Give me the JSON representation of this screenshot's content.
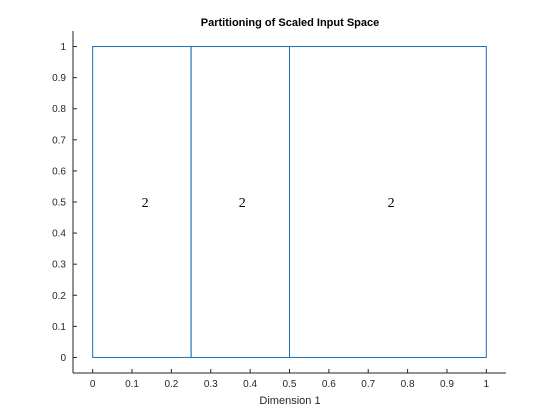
{
  "chart_data": {
    "type": "partition",
    "title": "Partitioning of Scaled Input Space",
    "xlabel": "Dimension 1",
    "ylabel": "",
    "xlim": [
      -0.05,
      1.05
    ],
    "ylim": [
      -0.05,
      1.05
    ],
    "xticks": [
      0,
      0.1,
      0.2,
      0.3,
      0.4,
      0.5,
      0.6,
      0.7,
      0.8,
      0.9,
      1
    ],
    "xtick_labels": [
      "0",
      "0.1",
      "0.2",
      "0.3",
      "0.4",
      "0.5",
      "0.6",
      "0.7",
      "0.8",
      "0.9",
      "1"
    ],
    "yticks": [
      0,
      0.1,
      0.2,
      0.3,
      0.4,
      0.5,
      0.6,
      0.7,
      0.8,
      0.9,
      1
    ],
    "ytick_labels": [
      "0",
      "0.1",
      "0.2",
      "0.3",
      "0.4",
      "0.5",
      "0.6",
      "0.7",
      "0.8",
      "0.9",
      "1"
    ],
    "regions": [
      {
        "x": [
          0,
          0.25
        ],
        "y": [
          0,
          1
        ],
        "label": "2",
        "label_x": 0.1333,
        "label_y": 0.5
      },
      {
        "x": [
          0.25,
          0.5
        ],
        "y": [
          0,
          1
        ],
        "label": "2",
        "label_x": 0.38,
        "label_y": 0.5
      },
      {
        "x": [
          0.5,
          1
        ],
        "y": [
          0,
          1
        ],
        "label": "2",
        "label_x": 0.7583,
        "label_y": 0.5
      }
    ],
    "grid": false,
    "colors": {
      "region_edge": "#1f6fb0",
      "axis": "#262626"
    }
  }
}
